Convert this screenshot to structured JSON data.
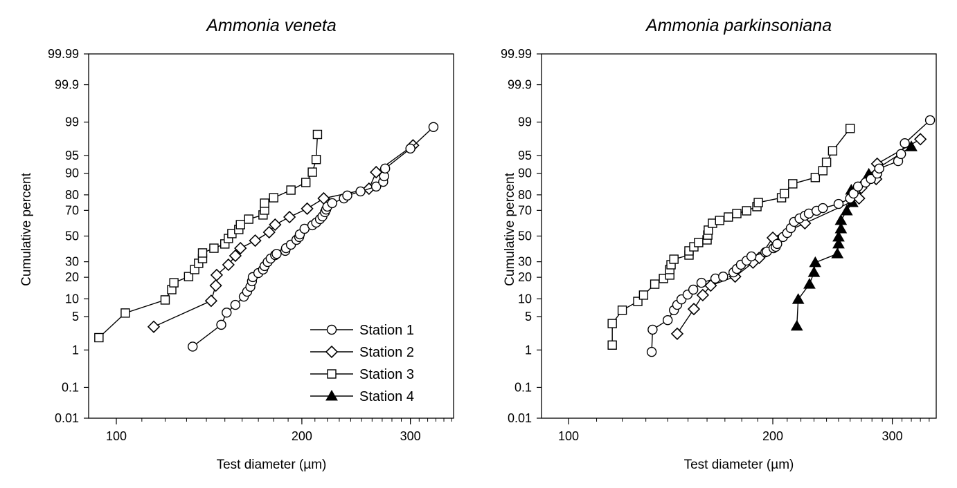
{
  "chart_data": [
    {
      "type": "scatter",
      "title": "Ammonia veneta",
      "xlabel": "Test diameter (µm)",
      "ylabel": "Cumulative percent",
      "xscale": "log",
      "yscale": "probability",
      "xlim": [
        90,
        352
      ],
      "ylim": [
        0.01,
        99.99
      ],
      "xticks": [
        100,
        200,
        300
      ],
      "yticks": [
        0.01,
        0.1,
        1,
        5,
        10,
        20,
        30,
        50,
        70,
        80,
        90,
        95,
        99,
        99.9,
        99.99
      ],
      "ytick_labels": [
        "0.01",
        "0.1",
        "1",
        "5",
        "10",
        "20",
        "30",
        "50",
        "70",
        "80",
        "90",
        "95",
        "99",
        "99.9",
        "99.99"
      ],
      "xtick_labels": [
        "100",
        "200",
        "300"
      ],
      "legend_position": "bottom-right",
      "series": [
        {
          "name": "Station 1",
          "marker": "circle",
          "x": [
            133,
            148,
            151,
            156,
            161,
            163,
            165,
            166,
            166.5,
            170,
            173,
            174,
            176,
            178,
            181,
            182,
            188,
            188.5,
            192,
            196,
            198,
            198.5,
            202,
            208,
            211,
            214,
            216,
            218,
            219,
            220,
            224,
            234,
            237,
            249,
            264,
            271,
            272,
            273,
            300,
            327
          ],
          "y": [
            1.2,
            3.5,
            5.9,
            8.0,
            10.8,
            12.8,
            15.0,
            17.8,
            20.1,
            22.5,
            24.7,
            27.0,
            29.8,
            32.3,
            34.9,
            35.8,
            38.1,
            40.2,
            43.0,
            46.9,
            49.2,
            51.4,
            55.9,
            58.7,
            60.8,
            63.5,
            65.6,
            68.7,
            70.6,
            72.6,
            74.9,
            77.9,
            79.6,
            81.9,
            84.4,
            86.6,
            88.9,
            91.6,
            96.3,
            98.7
          ]
        },
        {
          "name": "Station 2",
          "marker": "diamond",
          "x": [
            115,
            142.5,
            145,
            145.5,
            152,
            156,
            159,
            168,
            177,
            181,
            191,
            204,
            217,
            257,
            264,
            303
          ],
          "y": [
            3.2,
            9.3,
            15.6,
            21.3,
            27.9,
            34.4,
            40.2,
            46.3,
            53.1,
            59.2,
            65.1,
            71.2,
            77.9,
            83.3,
            90.4,
            96.8
          ]
        },
        {
          "name": "Station 3",
          "marker": "square",
          "x": [
            93.7,
            103.4,
            120,
            123,
            124,
            131,
            134,
            136,
            138,
            138,
            144,
            150,
            152,
            154,
            158,
            159,
            164,
            173,
            174,
            174,
            180,
            192,
            203,
            208,
            211,
            212
          ],
          "y": [
            1.9,
            5.8,
            9.6,
            13.7,
            17,
            20.4,
            24.7,
            28.9,
            32.3,
            36.5,
            40.2,
            43.6,
            48,
            52,
            55.3,
            59.2,
            63.5,
            66.7,
            70.2,
            74.9,
            78.3,
            82.6,
            86.3,
            90.4,
            94.1,
            98.1
          ]
        },
        {
          "name": "Station 4",
          "marker": "triangle-filled",
          "x": [],
          "y": []
        }
      ]
    },
    {
      "type": "scatter",
      "title": "Ammonia parkinsoniana",
      "xlabel": "Test diameter (µm)",
      "ylabel": "Cumulative percent",
      "xscale": "log",
      "yscale": "probability",
      "xlim": [
        91,
        348
      ],
      "ylim": [
        0.01,
        99.99
      ],
      "xticks": [
        100,
        200,
        300
      ],
      "yticks": [
        0.01,
        0.1,
        1,
        5,
        10,
        20,
        30,
        50,
        70,
        80,
        90,
        95,
        99,
        99.9,
        99.99
      ],
      "ytick_labels": [
        "0.01",
        "0.1",
        "1",
        "5",
        "10",
        "20",
        "30",
        "50",
        "70",
        "80",
        "90",
        "95",
        "99",
        "99.9",
        "99.99"
      ],
      "xtick_labels": [
        "100",
        "200",
        "300"
      ],
      "series": [
        {
          "name": "Station 1",
          "marker": "circle",
          "x": [
            132.6,
            133,
            140,
            143,
            144.6,
            146.7,
            149.8,
            152.7,
            157,
            164.6,
            169,
            175,
            177,
            179.5,
            183,
            186,
            195,
            196,
            200.5,
            202,
            203,
            207,
            210,
            212.6,
            215,
            219,
            223,
            226,
            232,
            237,
            250,
            260,
            263,
            267,
            274,
            279,
            285,
            287,
            306,
            309,
            313,
            341
          ],
          "y": [
            0.9,
            2.8,
            4.3,
            6.5,
            8.0,
            9.8,
            11.6,
            13.7,
            17.0,
            19.3,
            20.4,
            22.9,
            25.1,
            27.9,
            30.8,
            33.9,
            37.0,
            37.5,
            40.2,
            41.3,
            43.6,
            49.2,
            52.5,
            56.4,
            61.4,
            64.1,
            66.1,
            67.7,
            69.7,
            71.6,
            74.4,
            77.9,
            80.7,
            84.4,
            86.3,
            87.8,
            89.9,
            91.6,
            93.7,
            95.3,
            97.1,
            99.1
          ]
        },
        {
          "name": "Station 2",
          "marker": "diamond",
          "x": [
            144.6,
            153,
            157.7,
            162,
            176,
            187,
            191,
            200,
            223,
            268,
            270,
            284,
            285,
            330
          ],
          "y": [
            2.3,
            6.8,
            11.4,
            15.6,
            20.4,
            29.4,
            32.8,
            48.6,
            60.3,
            77.9,
            83.7,
            87.8,
            93.0,
            97.6
          ]
        },
        {
          "name": "Station 3",
          "marker": "square",
          "x": [
            116,
            116,
            120,
            126.5,
            129,
            134,
            138,
            141,
            141,
            141.6,
            143,
            150.5,
            150.5,
            153,
            155.5,
            160,
            160.4,
            160.7,
            163,
            167,
            172,
            177,
            183,
            189.5,
            190.4,
            206,
            208,
            214,
            231,
            237,
            240,
            245,
            260
          ],
          "y": [
            1.3,
            3.7,
            6.5,
            9.1,
            11.4,
            16.3,
            19.3,
            21.3,
            24.7,
            27.9,
            31.8,
            34.9,
            38.1,
            41.3,
            44.7,
            46.9,
            50.8,
            54.8,
            60.3,
            62.5,
            65.1,
            67.7,
            69.7,
            72.6,
            75.3,
            78.3,
            80.7,
            85.7,
            88.4,
            90.9,
            93.4,
            95.9,
            98.6
          ]
        },
        {
          "name": "Station 4",
          "marker": "triangle-filled",
          "x": [
            217,
            218,
            226.5,
            230,
            231,
            249,
            250,
            250,
            252,
            252,
            257,
            262,
            261,
            277,
            320
          ],
          "y": [
            3.3,
            9.8,
            16.3,
            22.9,
            29.4,
            35.9,
            43.6,
            49.2,
            55.9,
            62.5,
            69.7,
            75.3,
            82.6,
            89.7,
            96.6
          ]
        }
      ]
    }
  ]
}
